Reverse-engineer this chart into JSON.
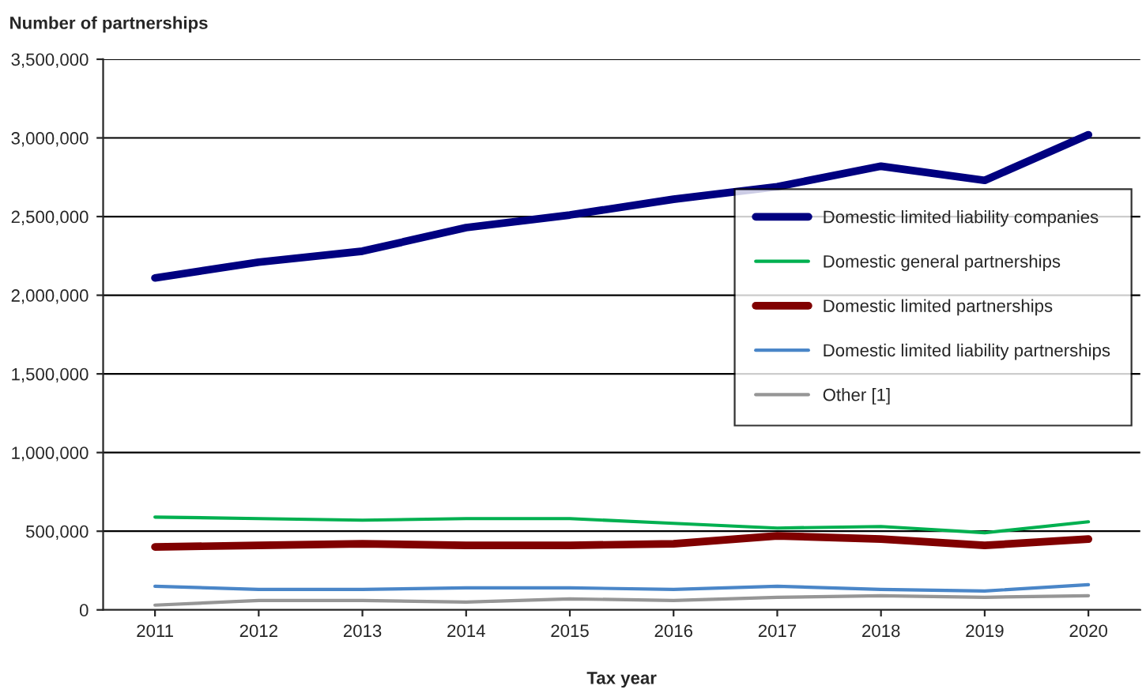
{
  "chart_data": {
    "type": "line",
    "ylabel": "Number of partnerships",
    "xlabel": "Tax year",
    "categories": [
      "2011",
      "2012",
      "2013",
      "2014",
      "2015",
      "2016",
      "2017",
      "2018",
      "2019",
      "2020"
    ],
    "series": [
      {
        "name": "Domestic limited liability companies",
        "color": "#000080",
        "values": [
          2110000,
          2210000,
          2280000,
          2430000,
          2510000,
          2610000,
          2690000,
          2820000,
          2730000,
          3020000
        ]
      },
      {
        "name": "Domestic general partnerships",
        "color": "#00b050",
        "values": [
          590000,
          580000,
          570000,
          580000,
          580000,
          550000,
          520000,
          530000,
          490000,
          560000
        ]
      },
      {
        "name": "Domestic limited partnerships",
        "color": "#800000",
        "values": [
          400000,
          410000,
          420000,
          410000,
          410000,
          420000,
          470000,
          450000,
          410000,
          450000
        ]
      },
      {
        "name": "Domestic limited liability partnerships",
        "color": "#4a86c8",
        "values": [
          150000,
          130000,
          130000,
          140000,
          140000,
          130000,
          150000,
          130000,
          120000,
          160000
        ]
      },
      {
        "name": "Other [1]",
        "color": "#969696",
        "values": [
          30000,
          60000,
          60000,
          50000,
          70000,
          60000,
          80000,
          90000,
          80000,
          90000
        ]
      }
    ],
    "ylim": [
      0,
      3500000
    ],
    "yticks": [
      {
        "value": 0,
        "label": "0"
      },
      {
        "value": 500000,
        "label": "500,000"
      },
      {
        "value": 1000000,
        "label": "1,000,000"
      },
      {
        "value": 1500000,
        "label": "1,500,000"
      },
      {
        "value": 2000000,
        "label": "2,000,000"
      },
      {
        "value": 2500000,
        "label": "2,500,000"
      },
      {
        "value": 3000000,
        "label": "3,000,000"
      },
      {
        "value": 3500000,
        "label": "3,500,000"
      }
    ],
    "grid": "y",
    "legend": "right",
    "marker": "none",
    "line_style": "solid"
  }
}
